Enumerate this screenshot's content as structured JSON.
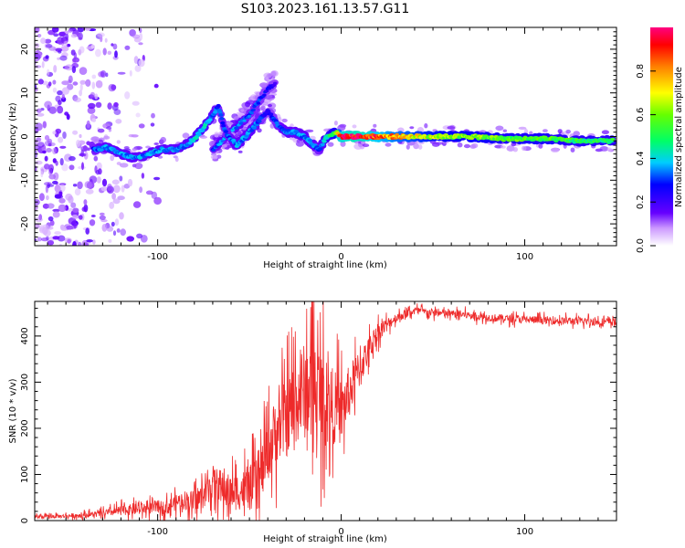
{
  "title": "S103.2023.161.13.57.G11",
  "chart_data": [
    {
      "type": "heatmap",
      "xlabel": "Height of straight line (km)",
      "ylabel": "Frequency (Hz)",
      "xlim": [
        -167,
        150
      ],
      "ylim": [
        -25,
        25
      ],
      "x_ticks": [
        -100,
        0,
        100
      ],
      "x_tick_labels": [
        "-100",
        "0",
        "100"
      ],
      "y_ticks": [
        20,
        10,
        0,
        -10,
        -20
      ],
      "y_tick_labels": [
        "20",
        "10",
        "0",
        "-10",
        "-20"
      ],
      "colorbar": {
        "label": "Normalized spectral amplitude",
        "range": [
          0,
          1
        ],
        "ticks": [
          0.0,
          0.2,
          0.4,
          0.6,
          0.8
        ],
        "tick_labels": [
          "0.0",
          "0.2",
          "0.4",
          "0.6",
          "0.8"
        ]
      },
      "ridge": {
        "x": [
          -135,
          -128,
          -120,
          -112,
          -105,
          -98,
          -90,
          -85,
          -80,
          -75,
          -70,
          -67,
          -63,
          -57,
          -52,
          -48,
          -44,
          -40,
          -35,
          -30,
          -25,
          -20,
          -15,
          -12,
          -8,
          -3,
          0,
          10,
          30,
          50,
          70,
          90,
          110,
          130,
          148
        ],
        "y": [
          -3,
          -2.5,
          -4,
          -5,
          -4,
          -3,
          -3,
          -2,
          -0.5,
          2,
          5,
          7,
          1,
          -2,
          0,
          2,
          4,
          6,
          3,
          1,
          1,
          0,
          -2,
          -3,
          0,
          1,
          0,
          0,
          0,
          0,
          0,
          -0.5,
          -0.5,
          -1,
          -1
        ],
        "amplitude": [
          0.3,
          0.35,
          0.35,
          0.35,
          0.35,
          0.35,
          0.35,
          0.35,
          0.4,
          0.4,
          0.35,
          0.3,
          0.3,
          0.35,
          0.35,
          0.35,
          0.3,
          0.25,
          0.3,
          0.35,
          0.35,
          0.35,
          0.35,
          0.3,
          0.45,
          0.55,
          0.9,
          0.95,
          0.75,
          0.65,
          0.6,
          0.55,
          0.55,
          0.5,
          0.5
        ]
      },
      "secondary_ridge": {
        "x": [
          -70,
          -65,
          -60,
          -55,
          -50,
          -45,
          -40,
          -36
        ],
        "y": [
          -3,
          -1,
          1,
          3,
          5,
          8,
          11,
          12
        ],
        "amplitude": [
          0.3,
          0.35,
          0.35,
          0.35,
          0.3,
          0.3,
          0.25,
          0.2
        ]
      },
      "noise_region": {
        "x_range": [
          -167,
          -100
        ],
        "y_range": [
          -25,
          25
        ]
      }
    },
    {
      "type": "line",
      "xlabel": "Height of straight line (km)",
      "ylabel": "SNR (10 * v/v)",
      "xlim": [
        -167,
        150
      ],
      "ylim": [
        0,
        475
      ],
      "x_ticks": [
        -100,
        0,
        100
      ],
      "x_tick_labels": [
        "-100",
        "0",
        "100"
      ],
      "y_ticks": [
        0,
        100,
        200,
        300,
        400
      ],
      "y_tick_labels": [
        "0",
        "100",
        "200",
        "300",
        "400"
      ],
      "series": [
        {
          "color": "#ee2a2a",
          "x": [
            -167,
            -150,
            -140,
            -130,
            -120,
            -110,
            -100,
            -95,
            -90,
            -85,
            -80,
            -75,
            -70,
            -65,
            -60,
            -55,
            -50,
            -45,
            -40,
            -35,
            -30,
            -25,
            -20,
            -15,
            -10,
            -5,
            0,
            5,
            10,
            15,
            20,
            25,
            30,
            40,
            50,
            60,
            70,
            80,
            90,
            100,
            110,
            120,
            130,
            140,
            150
          ],
          "y": [
            8,
            10,
            12,
            15,
            22,
            25,
            30,
            28,
            40,
            45,
            40,
            55,
            85,
            70,
            60,
            65,
            70,
            80,
            150,
            200,
            220,
            260,
            280,
            300,
            260,
            250,
            235,
            285,
            330,
            370,
            410,
            425,
            440,
            455,
            450,
            448,
            445,
            440,
            438,
            436,
            434,
            433,
            432,
            431,
            430
          ],
          "amplitude": [
            5,
            6,
            8,
            10,
            15,
            18,
            20,
            22,
            25,
            30,
            35,
            40,
            50,
            55,
            55,
            60,
            70,
            80,
            90,
            110,
            120,
            140,
            150,
            150,
            150,
            120,
            100,
            80,
            60,
            40,
            30,
            20,
            15,
            12,
            12,
            12,
            12,
            12,
            12,
            12,
            12,
            12,
            12,
            12,
            12
          ]
        }
      ]
    }
  ]
}
